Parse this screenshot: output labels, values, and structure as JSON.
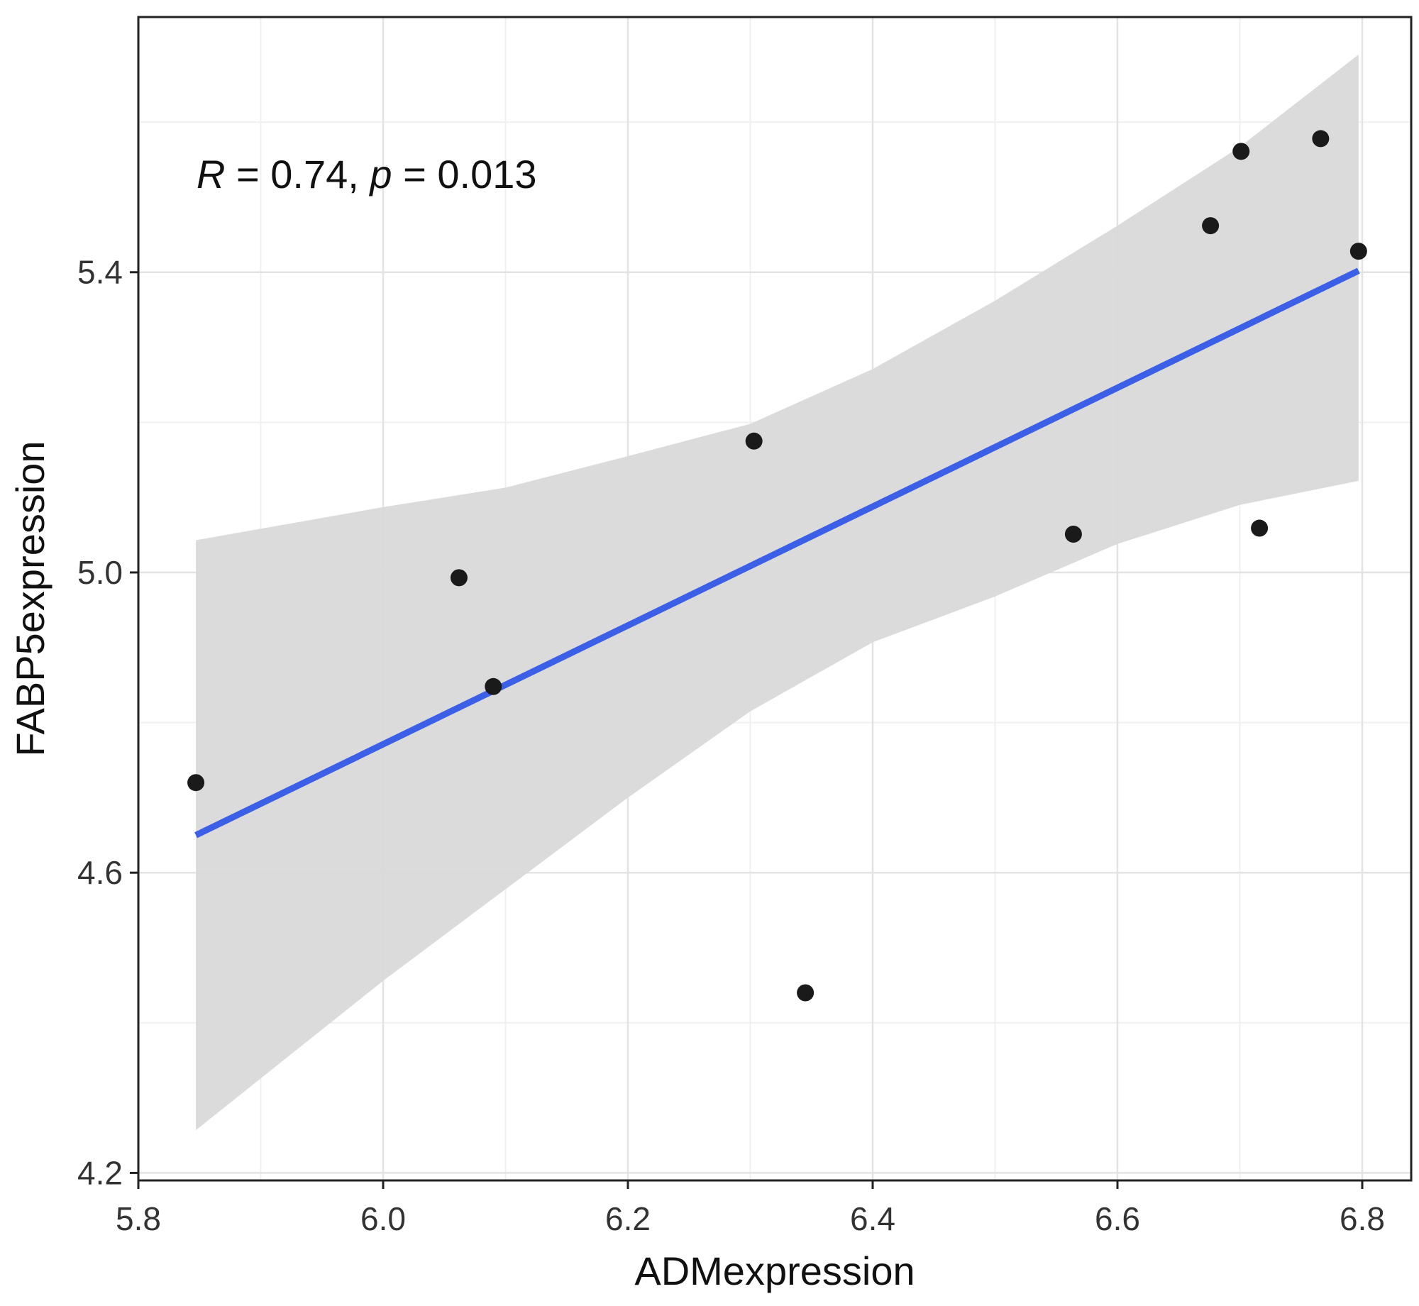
{
  "chart_data": {
    "type": "scatter",
    "title": "",
    "xlabel": "ADMexpression",
    "ylabel": "FABP5expression",
    "xlim": [
      5.8,
      6.84
    ],
    "ylim": [
      4.19,
      5.74
    ],
    "x_ticks": [
      5.8,
      6.0,
      6.2,
      6.4,
      6.6,
      6.8
    ],
    "x_tick_labels": [
      "5.8",
      "6.0",
      "6.2",
      "6.4",
      "6.6",
      "6.8"
    ],
    "y_ticks": [
      4.2,
      4.6,
      5.0,
      5.4
    ],
    "y_tick_labels": [
      "4.2",
      "4.6",
      "5.0",
      "5.4"
    ],
    "grid": true,
    "annotation": {
      "r_symbol": "R",
      "r_value": " = 0.74, ",
      "p_symbol": "p",
      "p_value": " = 0.013"
    },
    "points": {
      "x": [
        5.847,
        6.062,
        6.09,
        6.303,
        6.345,
        6.564,
        6.676,
        6.701,
        6.716,
        6.766,
        6.797
      ],
      "y": [
        4.72,
        4.993,
        4.848,
        5.175,
        4.44,
        5.051,
        5.462,
        5.561,
        5.059,
        5.578,
        5.428
      ]
    },
    "fit_line": {
      "x": [
        5.847,
        6.797
      ],
      "y": [
        4.65,
        5.402
      ],
      "color": "#3b5fe6"
    },
    "confidence_band": {
      "x": [
        5.847,
        6.0,
        6.1,
        6.2,
        6.3,
        6.4,
        6.5,
        6.6,
        6.7,
        6.797
      ],
      "upper": [
        5.043,
        5.087,
        5.113,
        5.155,
        5.198,
        5.271,
        5.362,
        5.462,
        5.567,
        5.69
      ],
      "lower": [
        4.257,
        4.456,
        4.578,
        4.7,
        4.815,
        4.907,
        4.968,
        5.038,
        5.09,
        5.122
      ],
      "color": "#d9d9d9"
    },
    "point_color": "#1a1a1a"
  }
}
